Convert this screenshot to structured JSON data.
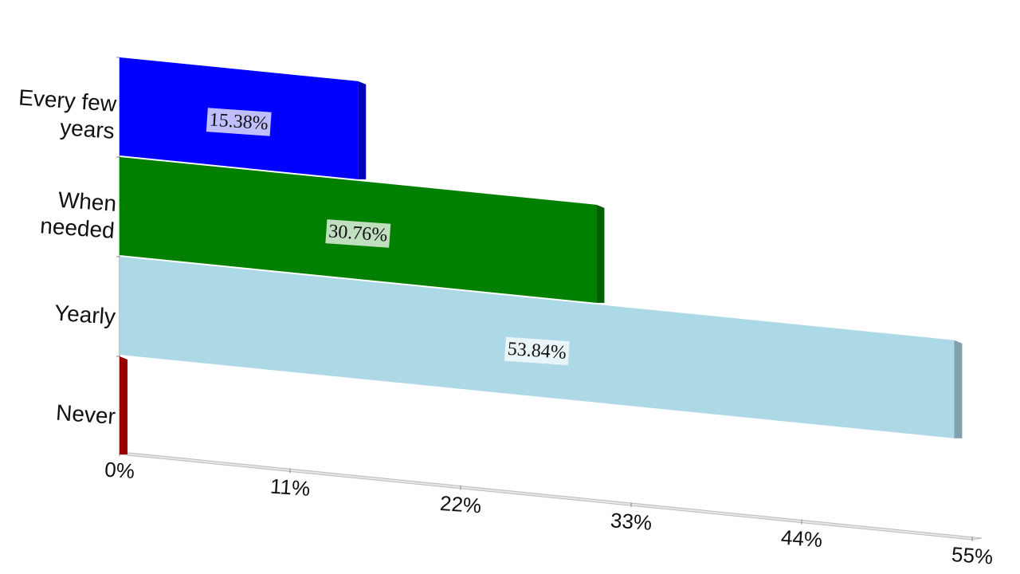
{
  "chart_data": {
    "type": "bar",
    "orientation": "horizontal",
    "categories": [
      "Every few years",
      "When needed",
      "Yearly",
      "Never"
    ],
    "values": [
      15.38,
      30.76,
      53.84,
      0
    ],
    "value_labels": [
      "15.38%",
      "30.76%",
      "53.84%",
      null
    ],
    "colors": [
      "#0000ff",
      "#008000",
      "#add8e6",
      "#cc0000"
    ],
    "xlim": [
      0,
      55
    ],
    "xticks": [
      {
        "value": 0,
        "label": "0%"
      },
      {
        "value": 11,
        "label": "11%"
      },
      {
        "value": 22,
        "label": "22%"
      },
      {
        "value": 33,
        "label": "33%"
      },
      {
        "value": 44,
        "label": "44%"
      },
      {
        "value": 55,
        "label": "55%"
      }
    ]
  }
}
